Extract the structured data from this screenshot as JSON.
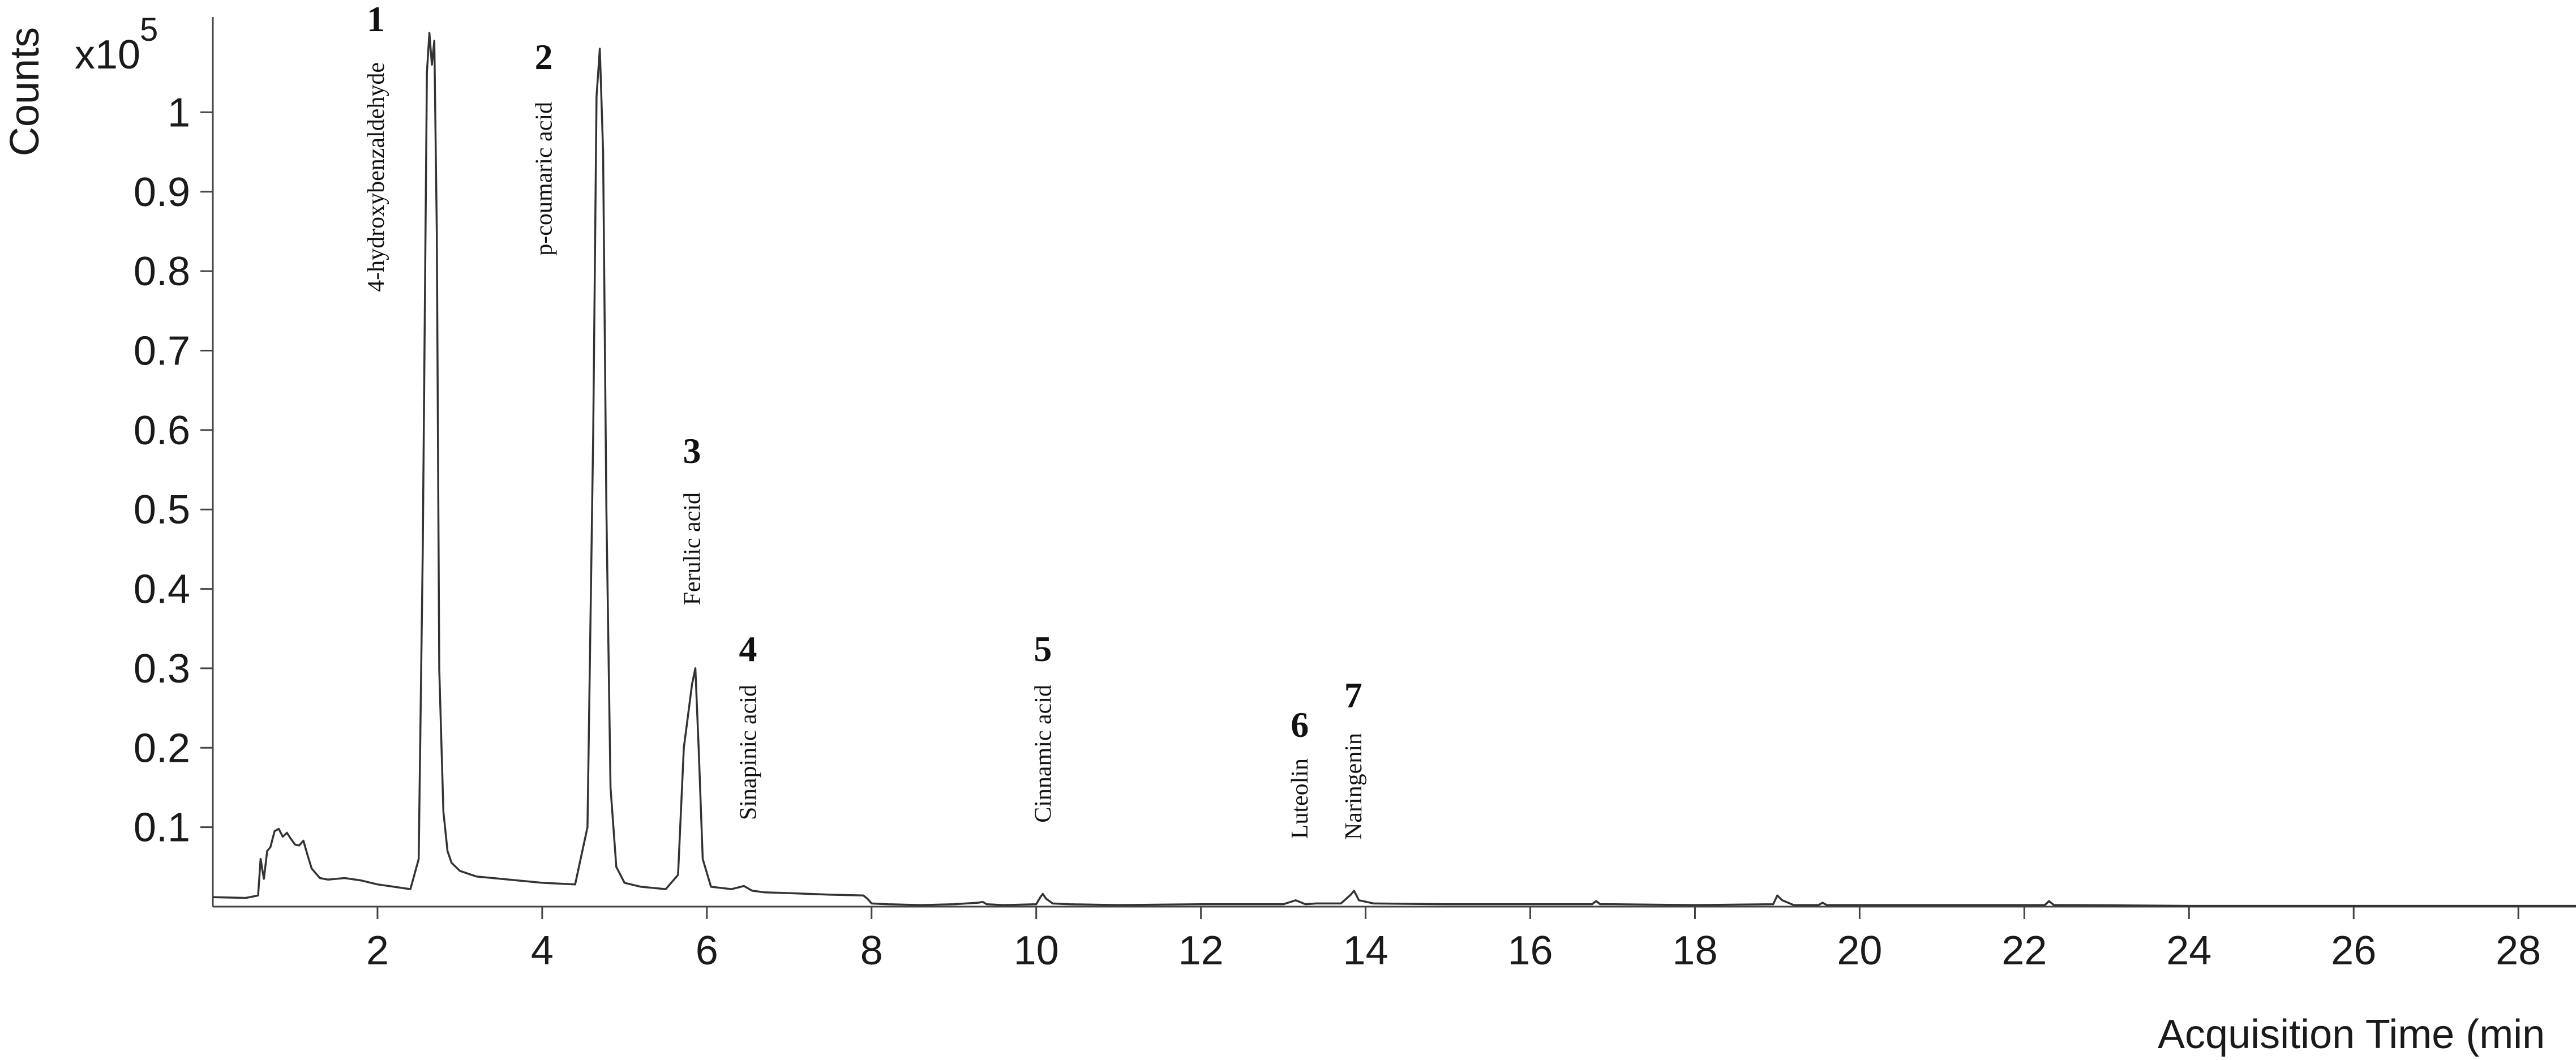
{
  "chart_data": {
    "type": "line",
    "title": "",
    "xlabel": "Acquisition Time (min",
    "ylabel": "Counts",
    "y_multiplier": "x10",
    "y_multiplier_exponent": "5",
    "xlim": [
      0,
      28.7
    ],
    "ylim": [
      0,
      1.12
    ],
    "grid": false,
    "legend": "none",
    "line_color": "#333333",
    "x_ticks": [
      2,
      4,
      6,
      8,
      10,
      12,
      14,
      16,
      18,
      20,
      22,
      24,
      26,
      28
    ],
    "x_tick_labels": [
      "2",
      "4",
      "6",
      "8",
      "10",
      "12",
      "14",
      "16",
      "18",
      "20",
      "22",
      "24",
      "26",
      "28"
    ],
    "y_ticks": [
      0.1,
      0.2,
      0.3,
      0.4,
      0.5,
      0.6,
      0.7,
      0.8,
      0.9,
      1
    ],
    "y_tick_labels": [
      "0.1",
      "0.2",
      "0.3",
      "0.4",
      "0.5",
      "0.6",
      "0.7",
      "0.8",
      "0.9",
      "1"
    ],
    "series": [
      {
        "x": [
          0.0,
          0.4,
          0.55,
          0.58,
          0.62,
          0.66,
          0.7,
          0.75,
          0.8,
          0.85,
          0.9,
          0.95,
          1.0,
          1.05,
          1.1,
          1.15,
          1.2,
          1.3,
          1.4,
          1.6,
          1.8,
          2.0,
          2.2,
          2.4,
          2.5,
          2.55,
          2.6,
          2.63,
          2.66,
          2.69,
          2.72,
          2.75,
          2.8,
          2.85,
          2.9,
          3.0,
          3.2,
          3.5,
          4.0,
          4.4,
          4.55,
          4.62,
          4.66,
          4.7,
          4.74,
          4.78,
          4.83,
          4.9,
          5.0,
          5.2,
          5.5,
          5.65,
          5.72,
          5.77,
          5.82,
          5.86,
          5.9,
          5.95,
          6.05,
          6.3,
          6.45,
          6.55,
          6.7,
          7.0,
          7.5,
          7.9,
          7.95,
          8.0,
          8.2,
          8.6,
          9.0,
          9.3,
          9.35,
          9.4,
          9.6,
          10.0,
          10.05,
          10.08,
          10.12,
          10.2,
          10.4,
          11.0,
          12.0,
          13.0,
          13.15,
          13.2,
          13.27,
          13.4,
          13.7,
          13.82,
          13.86,
          13.92,
          14.1,
          15.0,
          16.0,
          16.75,
          16.8,
          16.85,
          17.0,
          18.0,
          18.95,
          19.0,
          19.06,
          19.2,
          19.5,
          19.55,
          19.6,
          20.0,
          22.25,
          22.3,
          22.36,
          22.5,
          24.0,
          26.0,
          28.7
        ],
        "y": [
          0.012,
          0.011,
          0.014,
          0.06,
          0.035,
          0.07,
          0.075,
          0.095,
          0.098,
          0.088,
          0.093,
          0.085,
          0.078,
          0.077,
          0.083,
          0.065,
          0.048,
          0.036,
          0.034,
          0.036,
          0.033,
          0.028,
          0.025,
          0.022,
          0.06,
          0.45,
          1.05,
          1.1,
          1.06,
          1.09,
          0.85,
          0.3,
          0.12,
          0.07,
          0.055,
          0.045,
          0.038,
          0.035,
          0.03,
          0.028,
          0.1,
          0.6,
          1.02,
          1.08,
          0.95,
          0.5,
          0.15,
          0.05,
          0.03,
          0.025,
          0.022,
          0.04,
          0.2,
          0.24,
          0.28,
          0.3,
          0.2,
          0.06,
          0.025,
          0.022,
          0.026,
          0.02,
          0.018,
          0.017,
          0.015,
          0.014,
          0.01,
          0.004,
          0.003,
          0.002,
          0.003,
          0.005,
          0.006,
          0.003,
          0.002,
          0.003,
          0.012,
          0.016,
          0.01,
          0.004,
          0.003,
          0.002,
          0.003,
          0.003,
          0.008,
          0.006,
          0.003,
          0.004,
          0.004,
          0.015,
          0.02,
          0.008,
          0.004,
          0.003,
          0.003,
          0.003,
          0.007,
          0.003,
          0.003,
          0.002,
          0.003,
          0.014,
          0.008,
          0.002,
          0.002,
          0.005,
          0.002,
          0.002,
          0.002,
          0.007,
          0.002,
          0.002,
          0.001,
          0.001,
          0.001
        ]
      }
    ],
    "peaks": [
      {
        "number": "1",
        "name": "4-hydroxybenzaldehyde",
        "time": 2.68
      },
      {
        "number": "2",
        "name": "p-coumaric acid",
        "time": 4.72
      },
      {
        "number": "3",
        "name": "Ferulic acid",
        "time": 5.86
      },
      {
        "number": "4",
        "name": "Sinapinic acid",
        "time": 6.5
      },
      {
        "number": "5",
        "name": "Cinnamic acid",
        "time": 10.08
      },
      {
        "number": "6",
        "name": "Luteolin",
        "time": 13.2
      },
      {
        "number": "7",
        "name": "Naringenin",
        "time": 13.85
      }
    ]
  }
}
